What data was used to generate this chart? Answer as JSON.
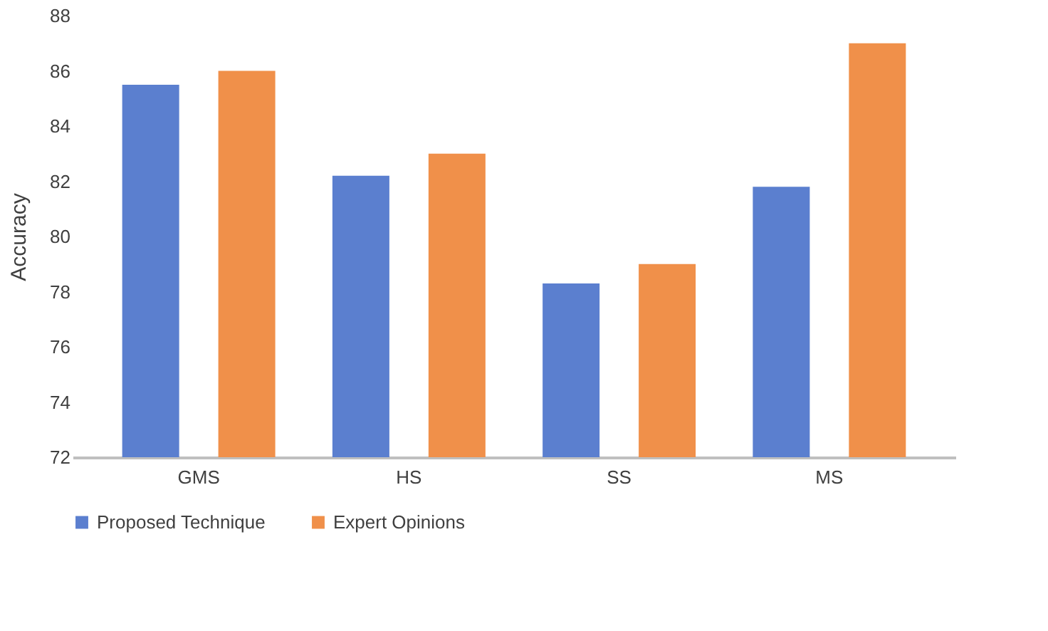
{
  "chart_data": {
    "type": "bar",
    "ylabel": "Accuracy",
    "categories": [
      "GMS",
      "HS",
      "SS",
      "MS"
    ],
    "series": [
      {
        "name": "Proposed Technique",
        "color": "#5b7fcf",
        "values": [
          85.5,
          82.2,
          78.3,
          81.8
        ]
      },
      {
        "name": "Expert Opinions",
        "color": "#f0904a",
        "values": [
          86,
          83,
          79,
          87
        ]
      }
    ],
    "ylim": [
      72,
      88
    ],
    "yticks": [
      72,
      74,
      76,
      78,
      80,
      82,
      84,
      86,
      88
    ],
    "grid": false,
    "legend": "bottom"
  }
}
